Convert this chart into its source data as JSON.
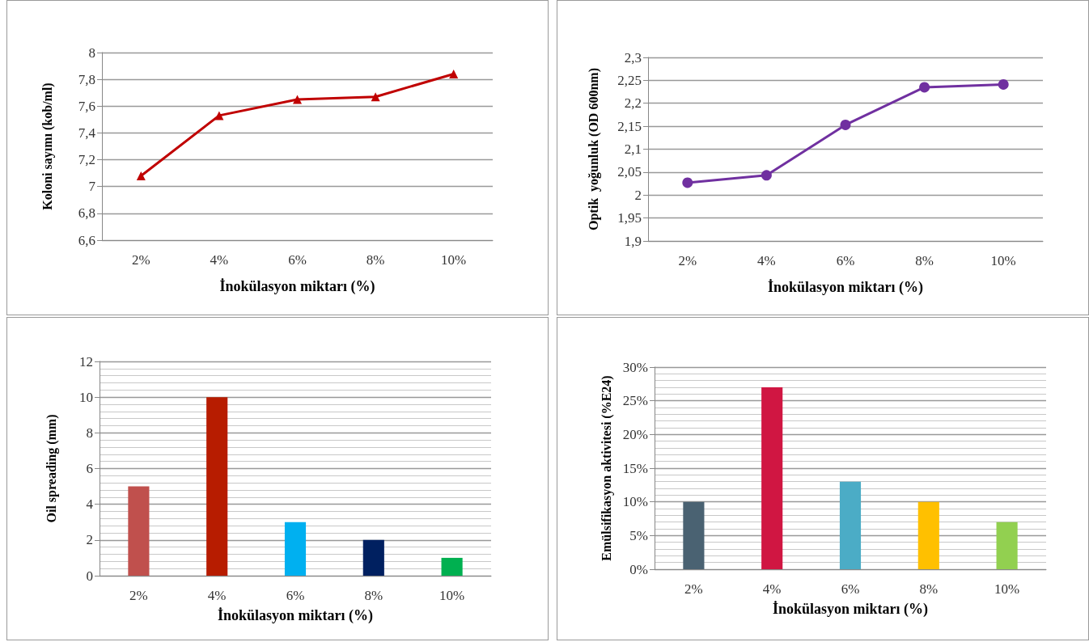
{
  "chart_data": [
    {
      "type": "line",
      "categories": [
        "2%",
        "4%",
        "6%",
        "8%",
        "10%"
      ],
      "xlabel": "İnokülasyon miktarı (%)",
      "ylabel": "Koloni sayımı (kob/ml)",
      "marker": "triangle",
      "grid": "y",
      "series": [
        {
          "color": "#c00000",
          "values": [
            7.08,
            7.53,
            7.65,
            7.67,
            7.84
          ]
        }
      ],
      "ylim": [
        6.6,
        8
      ],
      "yticks": [
        {
          "value": 6.6,
          "label": "6,6"
        },
        {
          "value": 6.8,
          "label": "6,8"
        },
        7,
        {
          "value": 7.2,
          "label": "7,2"
        },
        {
          "value": 7.4,
          "label": "7,4"
        },
        {
          "value": 7.6,
          "label": "7,6"
        },
        {
          "value": 7.8,
          "label": "7,8"
        },
        8
      ]
    },
    {
      "type": "line",
      "categories": [
        "2%",
        "4%",
        "6%",
        "8%",
        "10%"
      ],
      "xlabel": "İnokülasyon miktarı (%)",
      "ylabel": "Optik  yoğunluk (OD 600nm)",
      "marker": "circle",
      "grid": "y",
      "series": [
        {
          "color": "#7030a0",
          "values": [
            2.027,
            2.043,
            2.153,
            2.235,
            2.241
          ]
        }
      ],
      "ylim": [
        1.9,
        2.3
      ],
      "yticks": [
        {
          "value": 1.9,
          "label": "1,9"
        },
        {
          "value": 1.95,
          "label": "1,95"
        },
        2,
        {
          "value": 2.05,
          "label": "2,05"
        },
        {
          "value": 2.1,
          "label": "2,1"
        },
        {
          "value": 2.15,
          "label": "2,15"
        },
        {
          "value": 2.2,
          "label": "2,2"
        },
        {
          "value": 2.25,
          "label": "2,25"
        },
        {
          "value": 2.3,
          "label": "2,3"
        }
      ]
    },
    {
      "type": "bar",
      "categories": [
        "2%",
        "4%",
        "6%",
        "8%",
        "10%"
      ],
      "xlabel": "İnokülasyon miktarı (%)",
      "ylabel": "Oil spreading (mm)",
      "grid": "y",
      "values": [
        5,
        10,
        3,
        2,
        1
      ],
      "colors": [
        "#c0504d",
        "#b71c00",
        "#00b0f0",
        "#002060",
        "#00b050"
      ],
      "ylim": [
        0,
        12
      ],
      "yticks": [
        0,
        2,
        4,
        6,
        8,
        10,
        12
      ]
    },
    {
      "type": "bar",
      "categories": [
        "2%",
        "4%",
        "6%",
        "8%",
        "10%"
      ],
      "xlabel": "İnokülasyon miktarı (%)",
      "ylabel": "Emülsifikasyon aktivitesi (%E24)",
      "grid": "y",
      "values": [
        10,
        27,
        13,
        10,
        7
      ],
      "colors": [
        "#4a6272",
        "#d01642",
        "#4bacc6",
        "#ffc000",
        "#92d050"
      ],
      "ylim": [
        0,
        30
      ],
      "yticks": [
        {
          "value": 0,
          "label": "0%"
        },
        {
          "value": 5,
          "label": "5%"
        },
        {
          "value": 10,
          "label": "10%"
        },
        {
          "value": 15,
          "label": "15%"
        },
        {
          "value": 20,
          "label": "20%"
        },
        {
          "value": 25,
          "label": "25%"
        },
        {
          "value": 30,
          "label": "30%"
        }
      ]
    }
  ]
}
